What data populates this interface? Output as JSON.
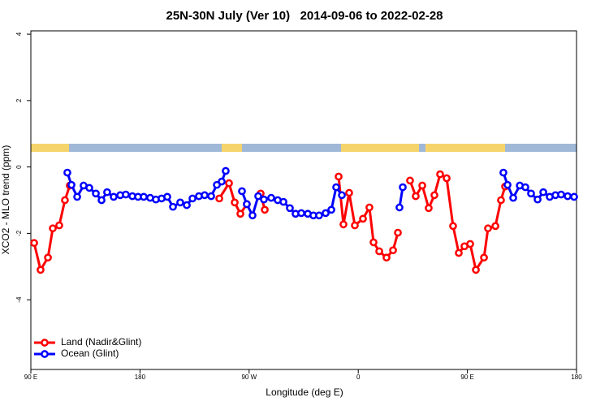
{
  "chart_data": {
    "type": "line",
    "title": "25N-30N July (Ver 10)   2014-09-06 to 2022-02-28",
    "xlabel": "Longitude (deg E)",
    "ylabel": "XCO2 - MLO trend (ppm)",
    "xlim": [
      90,
      540
    ],
    "xticks": [
      {
        "value": 90,
        "label": "90 E"
      },
      {
        "value": 180,
        "label": "180"
      },
      {
        "value": 270,
        "label": "90 W"
      },
      {
        "value": 360,
        "label": "0"
      },
      {
        "value": 450,
        "label": "90 E"
      },
      {
        "value": 540,
        "label": "180"
      }
    ],
    "ylim": [
      -6.1,
      4.1
    ],
    "yticks": [
      -4,
      -2,
      0,
      2,
      4
    ],
    "legend": "bottom-left",
    "series": [
      {
        "name": "Land (Nadir&Glint)",
        "color": "#ff0000",
        "x": [
          92.7,
          98.0,
          104.1,
          108.1,
          113.4,
          118.1,
          122.1,
          150,
          245.4,
          253.4,
          258.1,
          262.8,
          268.1,
          275,
          279.5,
          282.9,
          320,
          343.8,
          347.8,
          352.5,
          357.2,
          363.9,
          369.2,
          372.6,
          377.3,
          383.3,
          388.7,
          392.7,
          395,
          402.7,
          407.4,
          412.8,
          418.1,
          422.8,
          427.5,
          432.9,
          438.2,
          442.9,
          447.6,
          452.3,
          457.0,
          463.7,
          467.0,
          473.1,
          477.7,
          481.1
        ],
        "values": [
          -2.29,
          -3.1,
          -2.73,
          -1.85,
          -1.76,
          -1.0,
          -0.56,
          null,
          -0.95,
          -0.49,
          -1.07,
          -1.41,
          -1.12,
          null,
          -0.8,
          -1.29,
          null,
          -0.29,
          -1.73,
          -0.78,
          -1.76,
          -1.56,
          -1.22,
          -2.27,
          -2.54,
          -2.73,
          -2.51,
          -1.98,
          null,
          -0.41,
          -0.88,
          -0.56,
          -1.24,
          -0.85,
          -0.22,
          -0.34,
          -1.78,
          -2.59,
          -2.39,
          -2.32,
          -3.1,
          -2.73,
          -1.85,
          -1.78,
          -1.0,
          -0.59
        ]
      },
      {
        "name": "Ocean (Glint)",
        "color": "#0000ff",
        "x": [
          120.1,
          123.5,
          128.2,
          133.5,
          138.2,
          143.6,
          148.3,
          152.9,
          158.3,
          163.7,
          168.3,
          173.7,
          178.4,
          183.1,
          188.4,
          193.1,
          197.8,
          202.5,
          207.2,
          213.2,
          218.6,
          223.3,
          228.6,
          233.3,
          238.7,
          243.4,
          247.4,
          250.7,
          258,
          264.1,
          268.1,
          272.8,
          277.5,
          282.2,
          288.2,
          293.6,
          298.3,
          303.6,
          308.3,
          313.0,
          318.4,
          323.0,
          327.7,
          333.1,
          337.8,
          341.8,
          346.5,
          370,
          394.0,
          396.7,
          430,
          479.7,
          483.1,
          487.8,
          493.2,
          497.8,
          502.5,
          507.9,
          512.6,
          517.9,
          522.6,
          527.3,
          532.7,
          538.0
        ],
        "values": [
          -0.17,
          -0.54,
          -0.9,
          -0.56,
          -0.63,
          -0.8,
          -1.0,
          -0.76,
          -0.9,
          -0.85,
          -0.83,
          -0.88,
          -0.9,
          -0.9,
          -0.93,
          -0.98,
          -0.95,
          -0.9,
          -1.2,
          -1.07,
          -1.15,
          -0.95,
          -0.88,
          -0.85,
          -0.88,
          -0.54,
          -0.44,
          -0.12,
          null,
          -0.73,
          -1.12,
          -1.46,
          -0.88,
          -0.98,
          -0.93,
          -1.0,
          -1.05,
          -1.24,
          -1.41,
          -1.39,
          -1.41,
          -1.46,
          -1.46,
          -1.39,
          -1.29,
          -0.61,
          -0.85,
          null,
          -1.22,
          -0.61,
          null,
          -0.17,
          -0.54,
          -0.93,
          -0.56,
          -0.61,
          -0.8,
          -0.98,
          -0.76,
          -0.9,
          -0.85,
          -0.83,
          -0.88,
          -0.9
        ]
      }
    ]
  }
}
